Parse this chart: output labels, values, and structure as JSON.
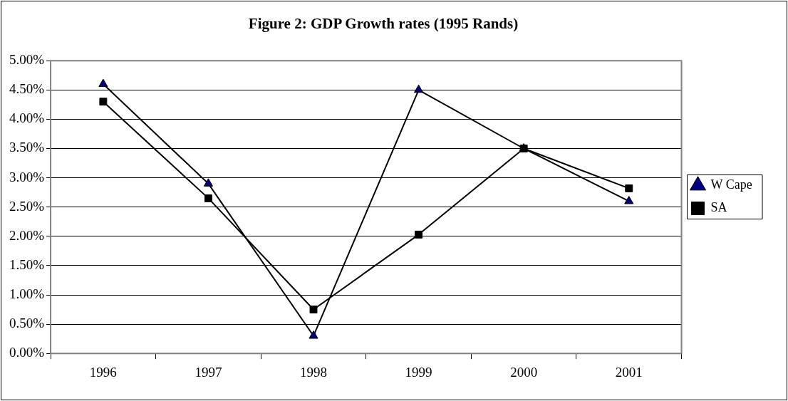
{
  "chart_data": {
    "type": "line",
    "title": "Figure 2: GDP Growth rates (1995 Rands)",
    "categories": [
      "1996",
      "1997",
      "1998",
      "1999",
      "2000",
      "2001"
    ],
    "series": [
      {
        "name": "W Cape",
        "color": "#000080",
        "marker": "triangle",
        "values": [
          4.6,
          2.9,
          0.3,
          4.5,
          3.5,
          2.6
        ]
      },
      {
        "name": "SA",
        "color": "#000000",
        "marker": "square",
        "values": [
          4.3,
          2.65,
          0.75,
          2.03,
          3.5,
          2.82
        ]
      }
    ],
    "ylim": [
      0,
      5
    ],
    "yticks": [
      {
        "value": 0,
        "label": "0.00%"
      },
      {
        "value": 0.5,
        "label": "0.50%"
      },
      {
        "value": 1,
        "label": "1.00%"
      },
      {
        "value": 1.5,
        "label": "1.50%"
      },
      {
        "value": 2,
        "label": "2.00%"
      },
      {
        "value": 2.5,
        "label": "2.50%"
      },
      {
        "value": 3,
        "label": "3.00%"
      },
      {
        "value": 3.5,
        "label": "3.50%"
      },
      {
        "value": 4,
        "label": "4.00%"
      },
      {
        "value": 4.5,
        "label": "4.50%"
      },
      {
        "value": 5,
        "label": "5.00%"
      }
    ],
    "grid": "y",
    "legend": "right",
    "line_style": "solid"
  }
}
